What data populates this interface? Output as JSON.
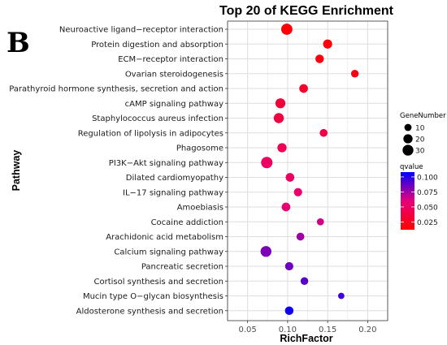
{
  "panel_label": "B",
  "chart_data": {
    "type": "scatter",
    "title": "Top 20 of KEGG Enrichment",
    "xlabel": "RichFactor",
    "ylabel": "Pathway",
    "xlim": [
      0.025,
      0.225
    ],
    "xticks": [
      0.05,
      0.1,
      0.15,
      0.2
    ],
    "xtick_labels": [
      "0.05",
      "0.10",
      "0.15",
      "0.20"
    ],
    "grid": true,
    "size_legend": {
      "title": "GeneNumber",
      "values": [
        10,
        20,
        30
      ],
      "labels": [
        "10",
        "20",
        "30"
      ]
    },
    "color_legend": {
      "title": "qvalue",
      "range": [
        0.012,
        0.108
      ],
      "ticks": [
        0.1,
        0.075,
        0.05,
        0.025
      ],
      "tick_labels": [
        "0.100",
        "0.075",
        "0.050",
        "0.025"
      ],
      "low_color": "#ff0000",
      "high_color": "#0000ff"
    },
    "points": [
      {
        "pathway": "Neuroactive ligand−receptor interaction",
        "rich_factor": 0.099,
        "gene_number": 33,
        "qvalue": 0.015
      },
      {
        "pathway": "Protein digestion and absorption",
        "rich_factor": 0.15,
        "gene_number": 19,
        "qvalue": 0.016
      },
      {
        "pathway": "ECM−receptor interaction",
        "rich_factor": 0.14,
        "gene_number": 16,
        "qvalue": 0.018
      },
      {
        "pathway": "Ovarian steroidogenesis",
        "rich_factor": 0.184,
        "gene_number": 12,
        "qvalue": 0.02
      },
      {
        "pathway": "Parathyroid hormone synthesis, secretion and action",
        "rich_factor": 0.12,
        "gene_number": 17,
        "qvalue": 0.03
      },
      {
        "pathway": "cAMP signaling pathway",
        "rich_factor": 0.091,
        "gene_number": 24,
        "qvalue": 0.035
      },
      {
        "pathway": "Staphylococcus aureus infection",
        "rich_factor": 0.089,
        "gene_number": 25,
        "qvalue": 0.038
      },
      {
        "pathway": "Regulation of lipolysis in adipocytes",
        "rich_factor": 0.145,
        "gene_number": 13,
        "qvalue": 0.04
      },
      {
        "pathway": "Phagosome",
        "rich_factor": 0.093,
        "gene_number": 20,
        "qvalue": 0.045
      },
      {
        "pathway": "PI3K−Akt signaling pathway",
        "rich_factor": 0.074,
        "gene_number": 34,
        "qvalue": 0.05
      },
      {
        "pathway": "Dilated cardiomyopathy",
        "rich_factor": 0.103,
        "gene_number": 17,
        "qvalue": 0.05
      },
      {
        "pathway": "IL−17 signaling pathway",
        "rich_factor": 0.113,
        "gene_number": 15,
        "qvalue": 0.055
      },
      {
        "pathway": "Amoebiasis",
        "rich_factor": 0.098,
        "gene_number": 17,
        "qvalue": 0.057
      },
      {
        "pathway": "Cocaine addiction",
        "rich_factor": 0.141,
        "gene_number": 10,
        "qvalue": 0.065
      },
      {
        "pathway": "Arachidonic acid metabolism",
        "rich_factor": 0.116,
        "gene_number": 13,
        "qvalue": 0.075
      },
      {
        "pathway": "Calcium signaling pathway",
        "rich_factor": 0.073,
        "gene_number": 30,
        "qvalue": 0.082
      },
      {
        "pathway": "Pancreatic secretion",
        "rich_factor": 0.102,
        "gene_number": 15,
        "qvalue": 0.085
      },
      {
        "pathway": "Cortisol synthesis and secretion",
        "rich_factor": 0.121,
        "gene_number": 12,
        "qvalue": 0.09
      },
      {
        "pathway": "Mucin type O−glycan biosynthesis",
        "rich_factor": 0.167,
        "gene_number": 7,
        "qvalue": 0.095
      },
      {
        "pathway": "Aldosterone synthesis and secretion",
        "rich_factor": 0.102,
        "gene_number": 16,
        "qvalue": 0.105
      }
    ]
  }
}
